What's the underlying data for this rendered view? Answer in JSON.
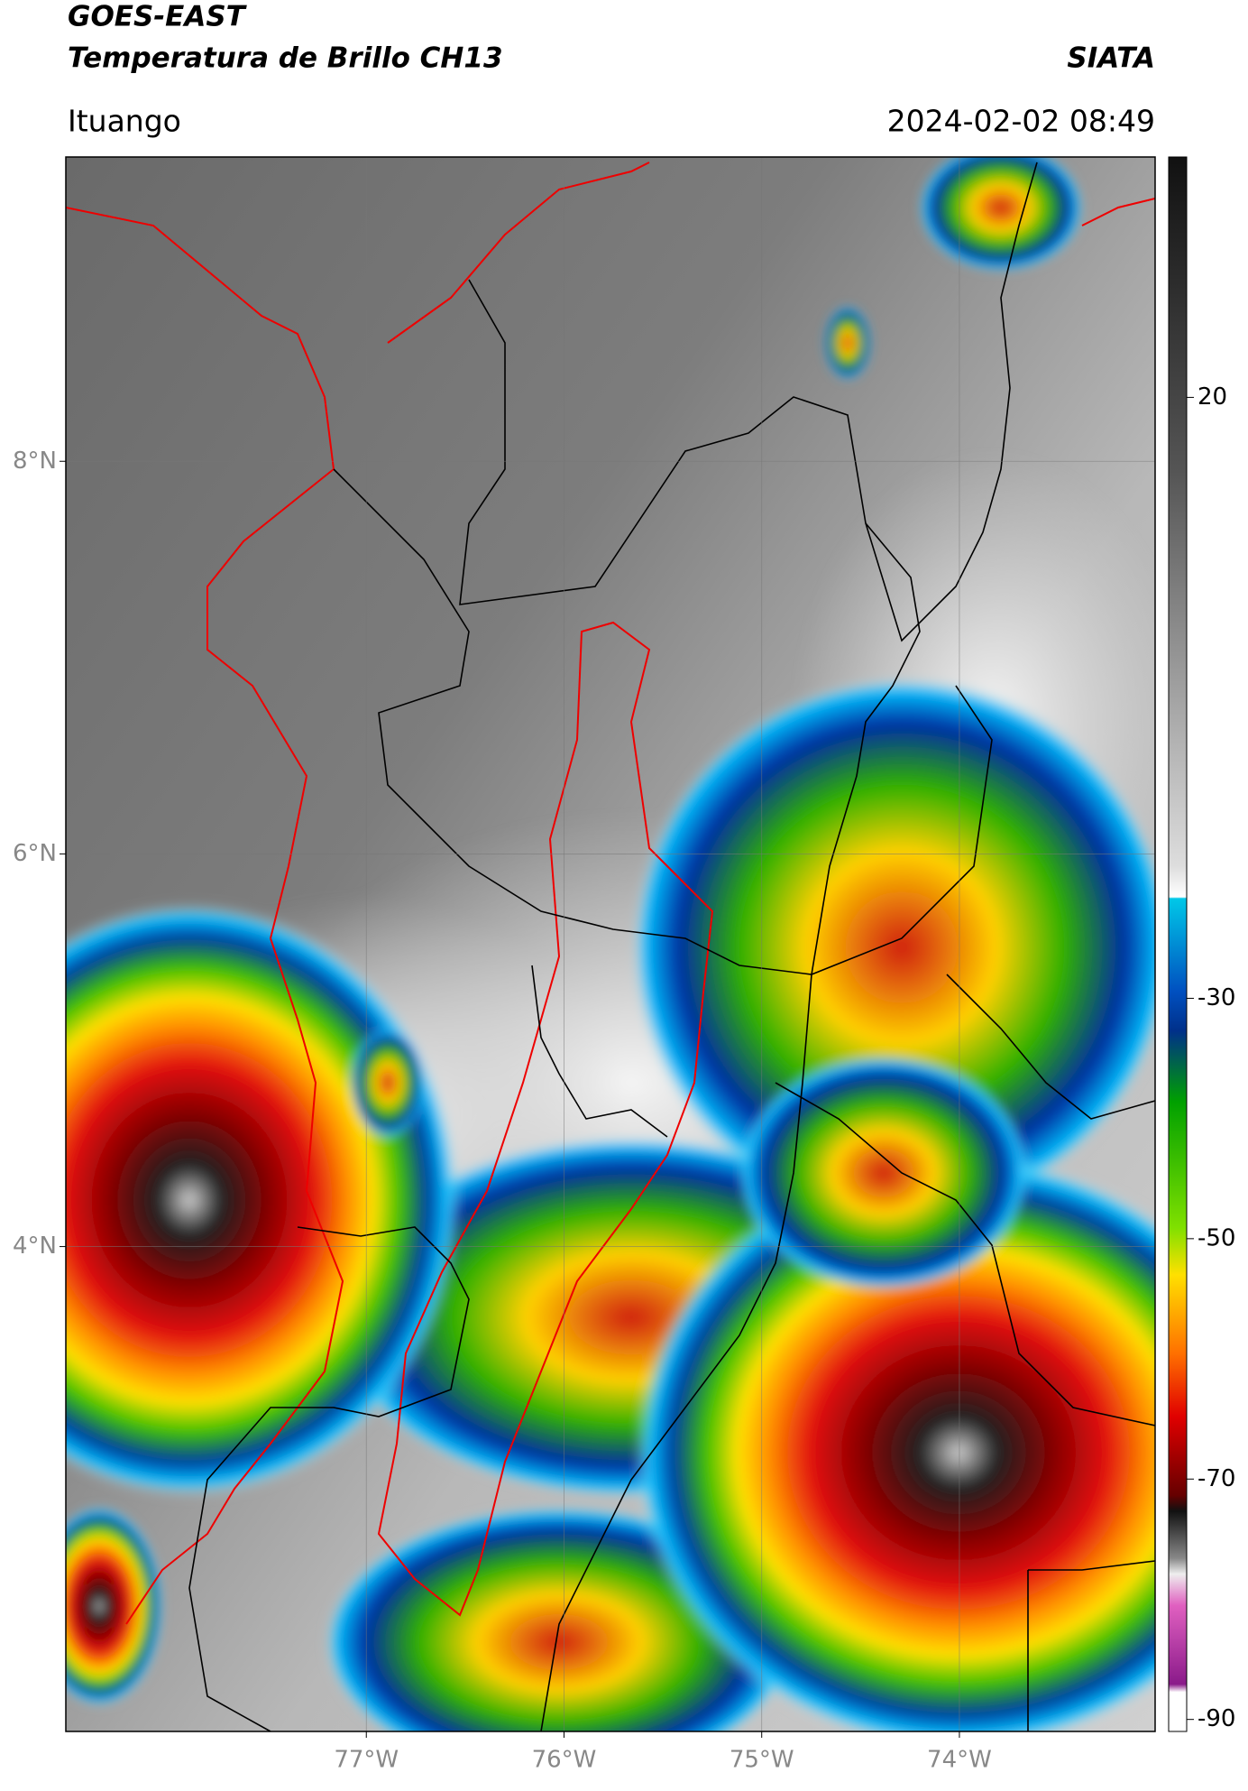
{
  "header": {
    "title_line1": "GOES-EAST",
    "title_line2": "Temperatura de Brillo CH13",
    "source": "SIATA",
    "region": "Ituango",
    "timestamp": "2024-02-02 08:49"
  },
  "map": {
    "xlim": [
      -78.52,
      -73.01
    ],
    "ylim": [
      1.53,
      9.55
    ],
    "xticks": [
      {
        "value": -77,
        "label": "77°W"
      },
      {
        "value": -76,
        "label": "76°W"
      },
      {
        "value": -75,
        "label": "75°W"
      },
      {
        "value": -74,
        "label": "74°W"
      }
    ],
    "yticks": [
      {
        "value": 8,
        "label": "8°N"
      },
      {
        "value": 6,
        "label": "6°N"
      },
      {
        "value": 4,
        "label": "4°N"
      }
    ],
    "grid": true
  },
  "colorbar": {
    "limits": [
      -91,
      40
    ],
    "ticks": [
      20,
      -30,
      -50,
      -70,
      -90
    ]
  }
}
